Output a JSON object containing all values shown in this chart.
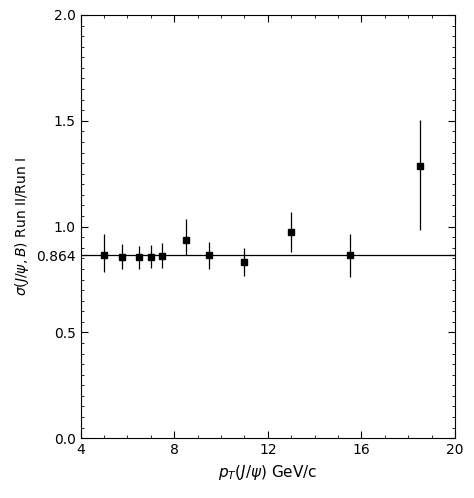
{
  "x": [
    5.0,
    5.75,
    6.5,
    7.0,
    7.5,
    8.5,
    9.5,
    11.0,
    13.0,
    15.5,
    18.5
  ],
  "y": [
    0.864,
    0.858,
    0.855,
    0.858,
    0.862,
    0.935,
    0.864,
    0.832,
    0.975,
    0.864,
    1.285
  ],
  "yerr_low": [
    0.08,
    0.06,
    0.055,
    0.055,
    0.06,
    0.07,
    0.065,
    0.065,
    0.095,
    0.1,
    0.3
  ],
  "yerr_high": [
    0.1,
    0.06,
    0.055,
    0.055,
    0.06,
    0.1,
    0.065,
    0.065,
    0.095,
    0.1,
    0.22
  ],
  "hline_y": 0.864,
  "xlim": [
    4,
    20
  ],
  "ylim": [
    0.0,
    2.0
  ],
  "xticks": [
    4,
    8,
    12,
    16,
    20
  ],
  "ytick_vals": [
    0.0,
    0.5,
    0.864,
    1.0,
    1.5,
    2.0
  ],
  "ytick_labels": [
    "0.0",
    "0.5",
    "0.864",
    "1.0",
    "1.5",
    "2.0"
  ],
  "xtick_labels": [
    "4",
    "8",
    "12",
    "16",
    "20"
  ],
  "xlabel": "p_{T}(J/\\psi) GeV/c",
  "ylabel": "\\sigma(J/\\psi,B) Run II/Run I",
  "marker_size": 5,
  "line_color": "#000000",
  "marker_color": "#000000",
  "bg_color": "#ffffff",
  "figsize": [
    4.74,
    4.98
  ],
  "dpi": 100
}
